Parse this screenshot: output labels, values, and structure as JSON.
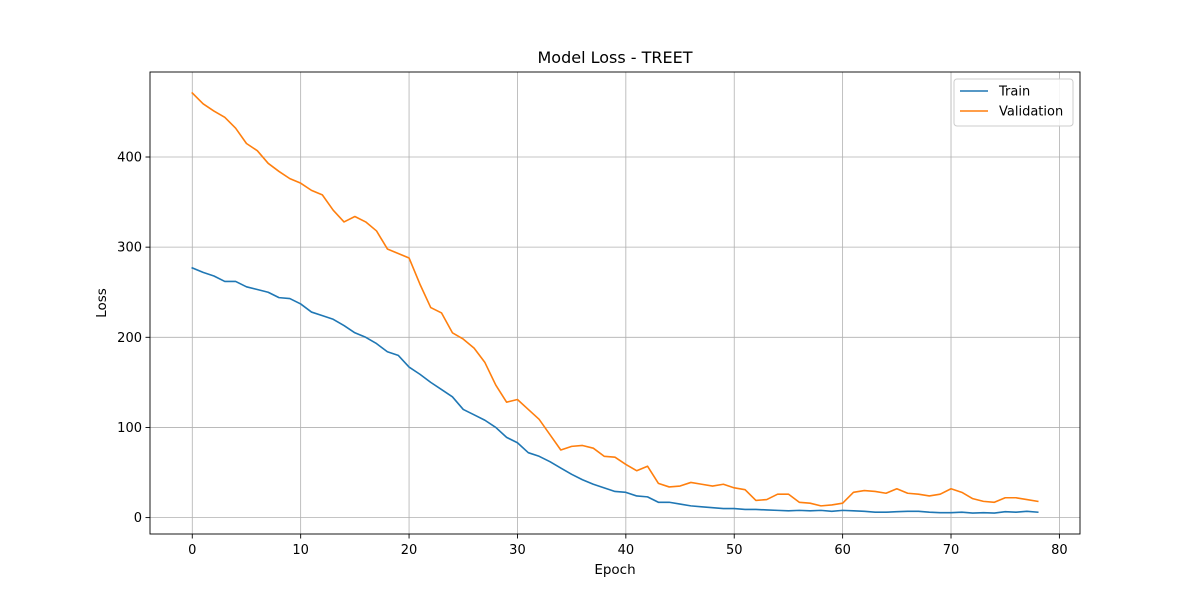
{
  "chart_data": {
    "type": "line",
    "title": "Model Loss - TREET",
    "xlabel": "Epoch",
    "ylabel": "Loss",
    "xlim": [
      -3.9,
      81.9
    ],
    "ylim": [
      -18.2,
      494.3
    ],
    "xticks": [
      0,
      10,
      20,
      30,
      40,
      50,
      60,
      70,
      80
    ],
    "yticks": [
      0,
      100,
      200,
      300,
      400
    ],
    "grid": true,
    "legend_position": "top-right",
    "x": [
      0,
      1,
      2,
      3,
      4,
      5,
      6,
      7,
      8,
      9,
      10,
      11,
      12,
      13,
      14,
      15,
      16,
      17,
      18,
      19,
      20,
      21,
      22,
      23,
      24,
      25,
      26,
      27,
      28,
      29,
      30,
      31,
      32,
      33,
      34,
      35,
      36,
      37,
      38,
      39,
      40,
      41,
      42,
      43,
      44,
      45,
      46,
      47,
      48,
      49,
      50,
      51,
      52,
      53,
      54,
      55,
      56,
      57,
      58,
      59,
      60,
      61,
      62,
      63,
      64,
      65,
      66,
      67,
      68,
      69,
      70,
      71,
      72,
      73,
      74,
      75,
      76,
      77,
      78
    ],
    "series": [
      {
        "name": "Train",
        "color": "#1f77b4",
        "values": [
          277,
          272,
          268,
          262,
          262,
          256,
          253,
          250,
          244,
          243,
          237,
          228,
          224,
          220,
          213,
          205,
          200,
          193,
          184,
          180,
          167,
          159,
          150,
          142,
          134,
          120,
          114,
          108,
          100,
          89,
          83,
          72,
          68,
          62,
          55,
          48,
          42,
          37,
          33,
          29,
          28,
          24,
          23,
          17,
          17,
          15,
          13,
          12,
          11,
          10,
          10,
          9,
          9,
          8.5,
          8,
          7.5,
          8,
          7.5,
          8,
          7,
          8,
          7.5,
          7,
          6,
          6,
          6.5,
          7,
          7,
          6,
          5.5,
          5.5,
          6,
          5,
          5.5,
          5,
          6.5,
          6,
          7,
          6
        ]
      },
      {
        "name": "Validation",
        "color": "#ff7f0e",
        "values": [
          471,
          459,
          451,
          444,
          432,
          415,
          407,
          393,
          384,
          376,
          371,
          363,
          358,
          341,
          328,
          334,
          328,
          318,
          298,
          293,
          288,
          259,
          233,
          227,
          205,
          198,
          188,
          172,
          147,
          128,
          131,
          120,
          109,
          92,
          75,
          79,
          80,
          77,
          68,
          67,
          59,
          52,
          57,
          38,
          34,
          35,
          39,
          37,
          35,
          37,
          33,
          31,
          19,
          20,
          26,
          26,
          17,
          16,
          13,
          14,
          16,
          28,
          30,
          29,
          27,
          32,
          27,
          26,
          24,
          26,
          32,
          28,
          21,
          18,
          17,
          22,
          22,
          20,
          18
        ]
      }
    ]
  }
}
